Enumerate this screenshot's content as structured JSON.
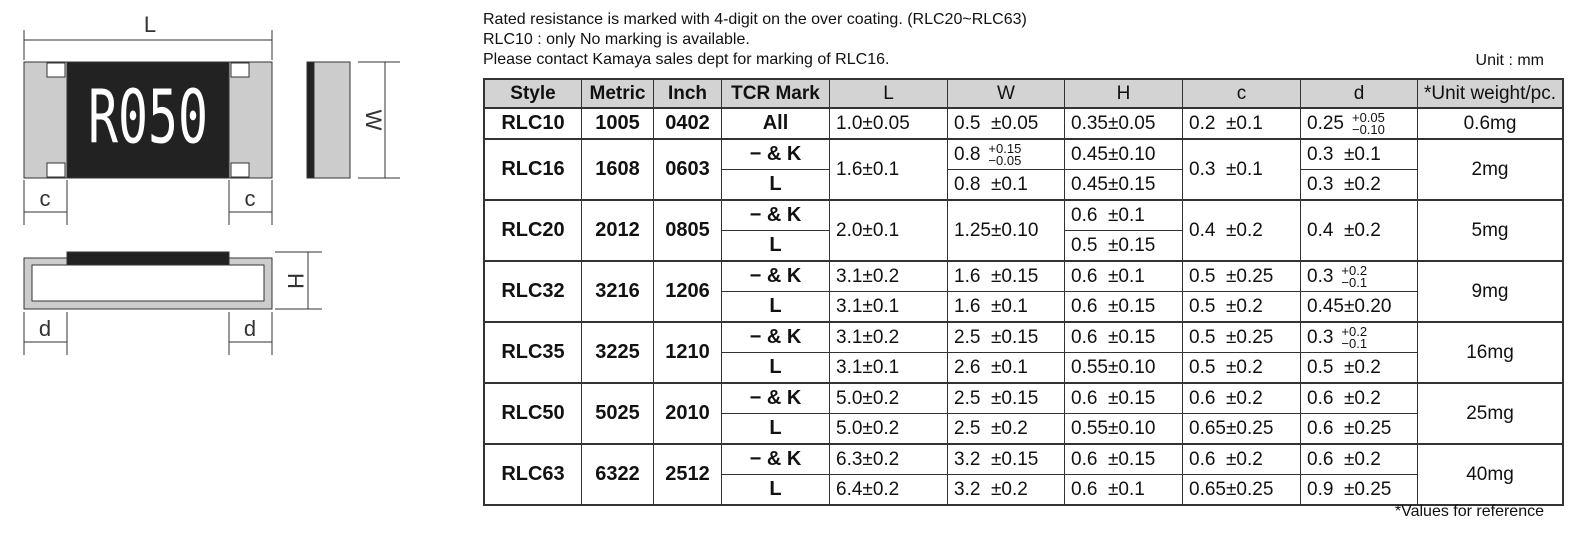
{
  "drawing": {
    "marking": "R050",
    "dims": {
      "L": "L",
      "W": "W",
      "c_left": "c",
      "c_right": "c",
      "H": "H",
      "d_left": "d",
      "d_right": "d"
    }
  },
  "notes": [
    "Rated resistance is marked with 4-digit on the over coating. (RLC20~RLC63)",
    "RLC10 : only No marking is available.",
    "Please contact Kamaya sales dept for marking of RLC16."
  ],
  "unit": "Unit : mm",
  "table": {
    "header": [
      "Style",
      "Metric",
      "Inch",
      "TCR Mark",
      "L",
      "W",
      "H",
      "c",
      "d",
      "*Unit weight/pc."
    ],
    "groups": [
      {
        "style": "RLC10",
        "metric": "1005",
        "inch": "0402",
        "weight": "0.6mg",
        "rows": [
          {
            "tcr": "All",
            "L": "1.0±0.05",
            "W": "0.5  ±0.05",
            "H": "0.35±0.05",
            "c": "0.2  ±0.1",
            "d": {
              "base": "0.25",
              "plus": "+0.05",
              "minus": "−0.10"
            }
          }
        ]
      },
      {
        "style": "RLC16",
        "metric": "1608",
        "inch": "0603",
        "weight": "2mg",
        "L": "1.6±0.1",
        "c": "0.3  ±0.1",
        "rows": [
          {
            "tcr": "− & K",
            "W": {
              "base": "0.8",
              "plus": "+0.15",
              "minus": "−0.05"
            },
            "H": "0.45±0.10",
            "d": "0.3  ±0.1"
          },
          {
            "tcr": "L",
            "W": "0.8  ±0.1",
            "H": "0.45±0.15",
            "d": "0.3  ±0.2"
          }
        ]
      },
      {
        "style": "RLC20",
        "metric": "2012",
        "inch": "0805",
        "weight": "5mg",
        "L": "2.0±0.1",
        "W": "1.25±0.10",
        "c": "0.4  ±0.2",
        "d": "0.4  ±0.2",
        "rows": [
          {
            "tcr": "− & K",
            "H": "0.6  ±0.1"
          },
          {
            "tcr": "L",
            "H": "0.5  ±0.15"
          }
        ]
      },
      {
        "style": "RLC32",
        "metric": "3216",
        "inch": "1206",
        "weight": "9mg",
        "rows": [
          {
            "tcr": "− & K",
            "L": "3.1±0.2",
            "W": "1.6  ±0.15",
            "H": "0.6  ±0.1",
            "c": "0.5  ±0.25",
            "d": {
              "base": "0.3",
              "plus": "+0.2",
              "minus": "−0.1"
            }
          },
          {
            "tcr": "L",
            "L": "3.1±0.1",
            "W": "1.6  ±0.1",
            "H": "0.6  ±0.15",
            "c": "0.5  ±0.2",
            "d": "0.45±0.20"
          }
        ]
      },
      {
        "style": "RLC35",
        "metric": "3225",
        "inch": "1210",
        "weight": "16mg",
        "rows": [
          {
            "tcr": "− & K",
            "L": "3.1±0.2",
            "W": "2.5  ±0.15",
            "H": "0.6  ±0.15",
            "c": "0.5  ±0.25",
            "d": {
              "base": "0.3",
              "plus": "+0.2",
              "minus": "−0.1"
            }
          },
          {
            "tcr": "L",
            "L": "3.1±0.1",
            "W": "2.6  ±0.1",
            "H": "0.55±0.10",
            "c": "0.5  ±0.2",
            "d": "0.5  ±0.2"
          }
        ]
      },
      {
        "style": "RLC50",
        "metric": "5025",
        "inch": "2010",
        "weight": "25mg",
        "rows": [
          {
            "tcr": "− & K",
            "L": "5.0±0.2",
            "W": "2.5  ±0.15",
            "H": "0.6  ±0.15",
            "c": "0.6  ±0.2",
            "d": "0.6  ±0.2"
          },
          {
            "tcr": "L",
            "L": "5.0±0.2",
            "W": "2.5  ±0.2",
            "H": "0.55±0.10",
            "c": "0.65±0.25",
            "d": "0.6  ±0.25"
          }
        ]
      },
      {
        "style": "RLC63",
        "metric": "6322",
        "inch": "2512",
        "weight": "40mg",
        "rows": [
          {
            "tcr": "− & K",
            "L": "6.3±0.2",
            "W": "3.2  ±0.15",
            "H": "0.6  ±0.15",
            "c": "0.6  ±0.2",
            "d": "0.6  ±0.2"
          },
          {
            "tcr": "L",
            "L": "6.4±0.2",
            "W": "3.2  ±0.2",
            "H": "0.6  ±0.1",
            "c": "0.65±0.25",
            "d": "0.9  ±0.25"
          }
        ]
      }
    ]
  },
  "footnote": "*Values for reference"
}
